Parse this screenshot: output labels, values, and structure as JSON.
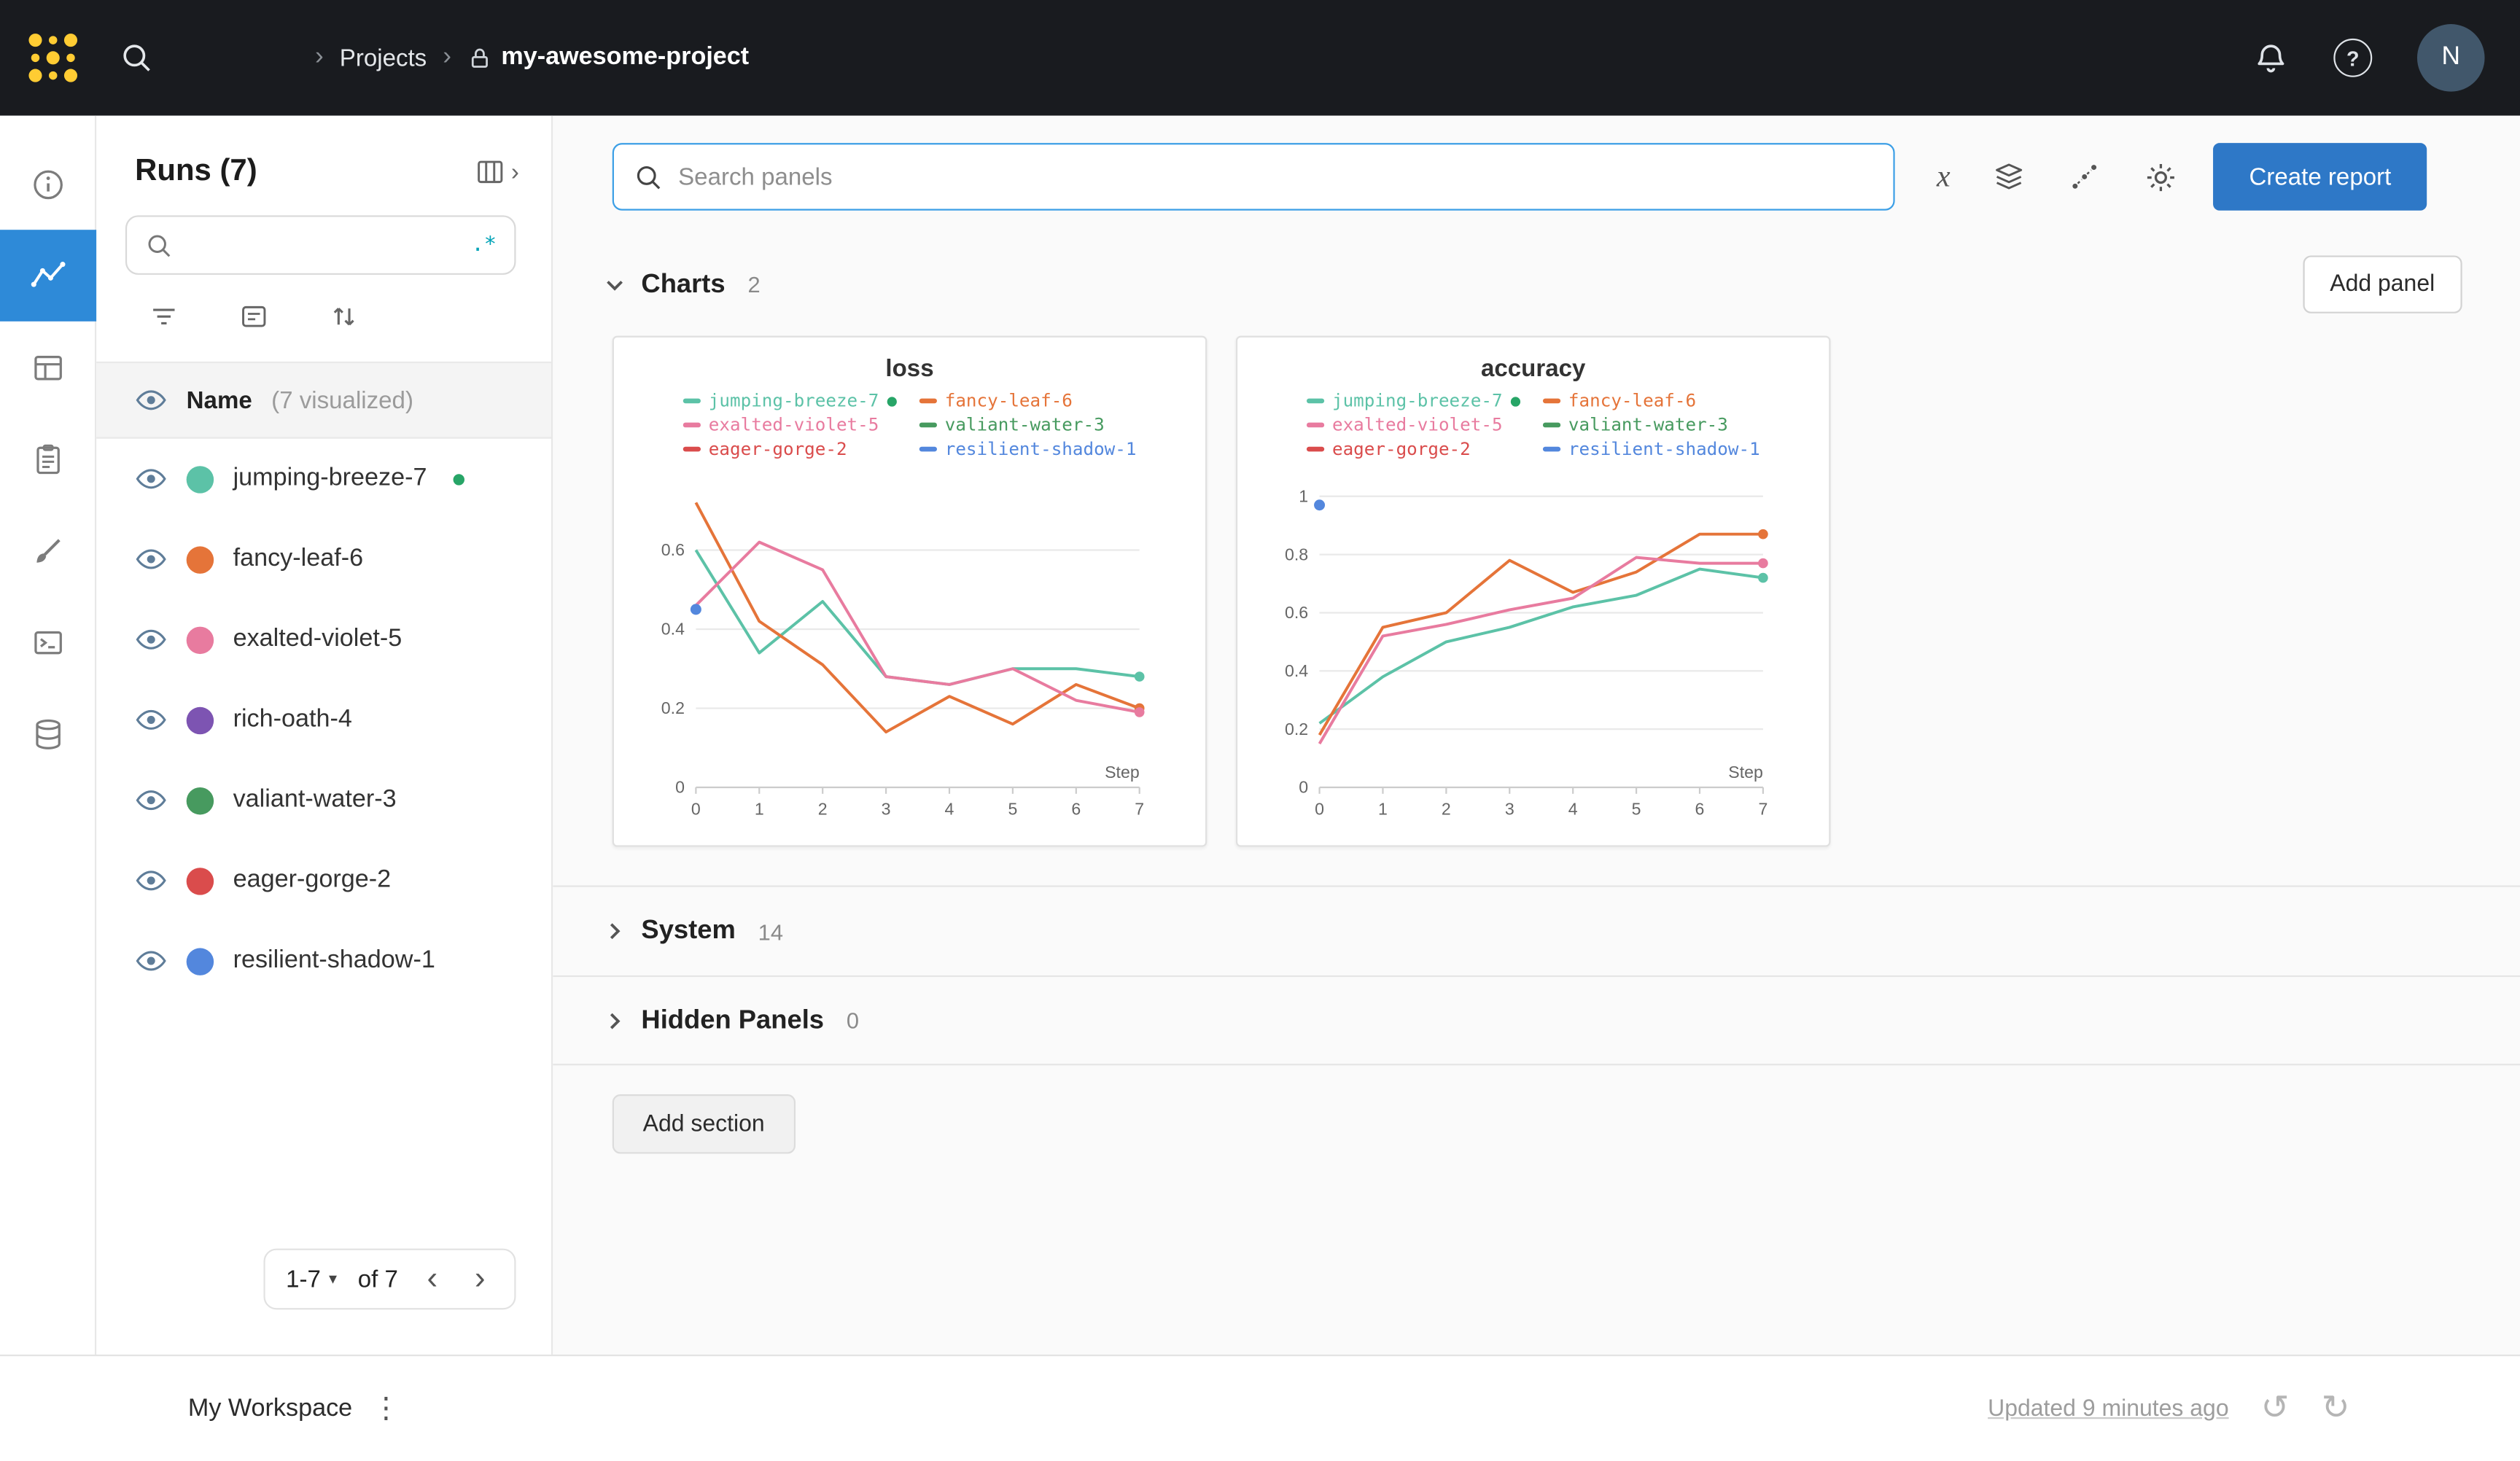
{
  "colors": {
    "accent_blue": "#2e78c7",
    "rail_active_blue": "#2e8ad8",
    "navbar_bg": "#191b1f",
    "logo_yellow": "#ffcc33",
    "search_focus_border": "#3c9fe6",
    "regex_teal": "#00a3b7",
    "active_green": "#27a567"
  },
  "glyphs": {
    "breadcrumb_sep": "›",
    "chevron_left": "‹",
    "chevron_right": "›",
    "caret_down": "▾",
    "kebab": "⋮",
    "undo": "↺",
    "redo": "↻",
    "help": "?",
    "x_axis": "x"
  },
  "navbar": {
    "breadcrumb": {
      "section": "Projects",
      "project": "my-awesome-project"
    },
    "avatar_initial": "N"
  },
  "sidebar": {
    "title": "Runs (7)",
    "regex_label": ".*",
    "header": {
      "name": "Name",
      "visualized": "(7 visualized)"
    },
    "runs": [
      {
        "name": "jumping-breeze-7",
        "color": "#5cc2a7",
        "active": true
      },
      {
        "name": "fancy-leaf-6",
        "color": "#e57439"
      },
      {
        "name": "exalted-violet-5",
        "color": "#e87b9f"
      },
      {
        "name": "rich-oath-4",
        "color": "#7d54b2"
      },
      {
        "name": "valiant-water-3",
        "color": "#479a5f"
      },
      {
        "name": "eager-gorge-2",
        "color": "#da4c4c"
      },
      {
        "name": "resilient-shadow-1",
        "color": "#5387dd"
      }
    ],
    "pagination": {
      "range": "1-7",
      "of": "of 7"
    }
  },
  "main": {
    "search_placeholder": "Search panels",
    "create_report_label": "Create report",
    "add_panel_label": "Add panel",
    "add_section_label": "Add section",
    "sections": [
      {
        "label": "Charts",
        "count": "2",
        "expanded": true
      },
      {
        "label": "System",
        "count": "14",
        "expanded": false
      },
      {
        "label": "Hidden Panels",
        "count": "0",
        "expanded": false
      }
    ]
  },
  "footer": {
    "workspace_label": "My Workspace",
    "updated_label": "Updated 9 minutes ago"
  },
  "chart_data": [
    {
      "type": "line",
      "title": "loss",
      "xlabel": "Step",
      "x": [
        0,
        1,
        2,
        3,
        4,
        5,
        6,
        7
      ],
      "xlim": [
        0,
        7
      ],
      "ylim": [
        0,
        0.78
      ],
      "yticks": [
        0,
        0.2,
        0.4,
        0.6
      ],
      "grid": true,
      "legend": [
        {
          "name": "jumping-breeze-7",
          "color": "#5cc2a7",
          "active": true
        },
        {
          "name": "fancy-leaf-6",
          "color": "#e57439"
        },
        {
          "name": "exalted-violet-5",
          "color": "#e87b9f"
        },
        {
          "name": "valiant-water-3",
          "color": "#479a5f"
        },
        {
          "name": "eager-gorge-2",
          "color": "#da4c4c"
        },
        {
          "name": "resilient-shadow-1",
          "color": "#5387dd"
        }
      ],
      "series": [
        {
          "name": "jumping-breeze-7",
          "color": "#5cc2a7",
          "values": [
            0.6,
            0.34,
            0.47,
            0.28,
            0.26,
            0.3,
            0.3,
            0.28
          ],
          "end_marker": true
        },
        {
          "name": "fancy-leaf-6",
          "color": "#e57439",
          "values": [
            0.72,
            0.42,
            0.31,
            0.14,
            0.23,
            0.16,
            0.26,
            0.2
          ],
          "end_marker": true
        },
        {
          "name": "exalted-violet-5",
          "color": "#e87b9f",
          "values": [
            0.46,
            0.62,
            0.55,
            0.28,
            0.26,
            0.3,
            0.22,
            0.19
          ],
          "end_marker": true
        },
        {
          "name": "valiant-water-3",
          "color": "#479a5f",
          "values": []
        },
        {
          "name": "eager-gorge-2",
          "color": "#da4c4c",
          "values": []
        },
        {
          "name": "resilient-shadow-1",
          "color": "#5387dd",
          "values": [
            0.45
          ]
        }
      ]
    },
    {
      "type": "line",
      "title": "accuracy",
      "xlabel": "Step",
      "x": [
        0,
        1,
        2,
        3,
        4,
        5,
        6,
        7
      ],
      "xlim": [
        0,
        7
      ],
      "ylim": [
        0,
        1.06
      ],
      "yticks": [
        0,
        0.2,
        0.4,
        0.6,
        0.8,
        1
      ],
      "grid": true,
      "legend": [
        {
          "name": "jumping-breeze-7",
          "color": "#5cc2a7",
          "active": true
        },
        {
          "name": "fancy-leaf-6",
          "color": "#e57439"
        },
        {
          "name": "exalted-violet-5",
          "color": "#e87b9f"
        },
        {
          "name": "valiant-water-3",
          "color": "#479a5f"
        },
        {
          "name": "eager-gorge-2",
          "color": "#da4c4c"
        },
        {
          "name": "resilient-shadow-1",
          "color": "#5387dd"
        }
      ],
      "series": [
        {
          "name": "jumping-breeze-7",
          "color": "#5cc2a7",
          "values": [
            0.22,
            0.38,
            0.5,
            0.55,
            0.62,
            0.66,
            0.75,
            0.72
          ],
          "end_marker": true
        },
        {
          "name": "fancy-leaf-6",
          "color": "#e57439",
          "values": [
            0.18,
            0.55,
            0.6,
            0.78,
            0.67,
            0.74,
            0.87,
            0.87
          ],
          "end_marker": true
        },
        {
          "name": "exalted-violet-5",
          "color": "#e87b9f",
          "values": [
            0.15,
            0.52,
            0.56,
            0.61,
            0.65,
            0.79,
            0.77,
            0.77
          ],
          "end_marker": true
        },
        {
          "name": "valiant-water-3",
          "color": "#479a5f",
          "values": []
        },
        {
          "name": "eager-gorge-2",
          "color": "#da4c4c",
          "values": []
        },
        {
          "name": "resilient-shadow-1",
          "color": "#5387dd",
          "values": [
            0.97
          ]
        }
      ]
    }
  ]
}
